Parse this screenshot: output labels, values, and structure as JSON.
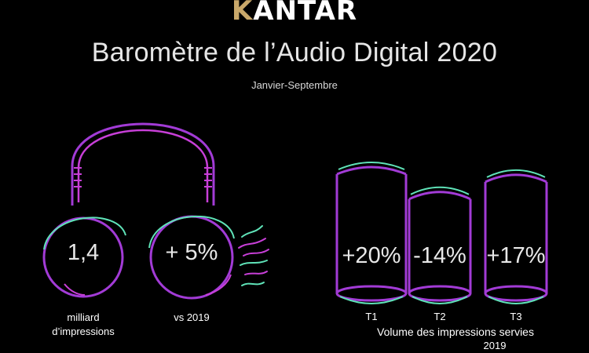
{
  "brand": {
    "logo_prefix": "K",
    "logo_rest": "ANTAR"
  },
  "header": {
    "title": "Baromètre de l’Audio Digital 2020",
    "subtitle": "Janvier-Septembre"
  },
  "left_panel": {
    "impressions_value": "1,4",
    "impressions_caption_line1": "milliard",
    "impressions_caption_line2": "d’impressions",
    "growth_value": "+ 5%",
    "growth_caption": "vs 2019"
  },
  "right_panel": {
    "caption": "Volume des impressions servies",
    "caption_cut": "2019"
  },
  "colors": {
    "background": "#000000",
    "purple": "#a23bd6",
    "magenta": "#c83fd8",
    "teal": "#5fe3b8",
    "gold": "#c9a86a"
  },
  "chart_data": {
    "type": "bar",
    "categories": [
      "T1",
      "T2",
      "T3"
    ],
    "value_labels": [
      "+20%",
      "-14%",
      "+17%"
    ],
    "values": [
      20,
      -14,
      17
    ],
    "title": "",
    "xlabel": "Volume des impressions servies",
    "ylabel": "",
    "legend": "none",
    "grid": false
  }
}
